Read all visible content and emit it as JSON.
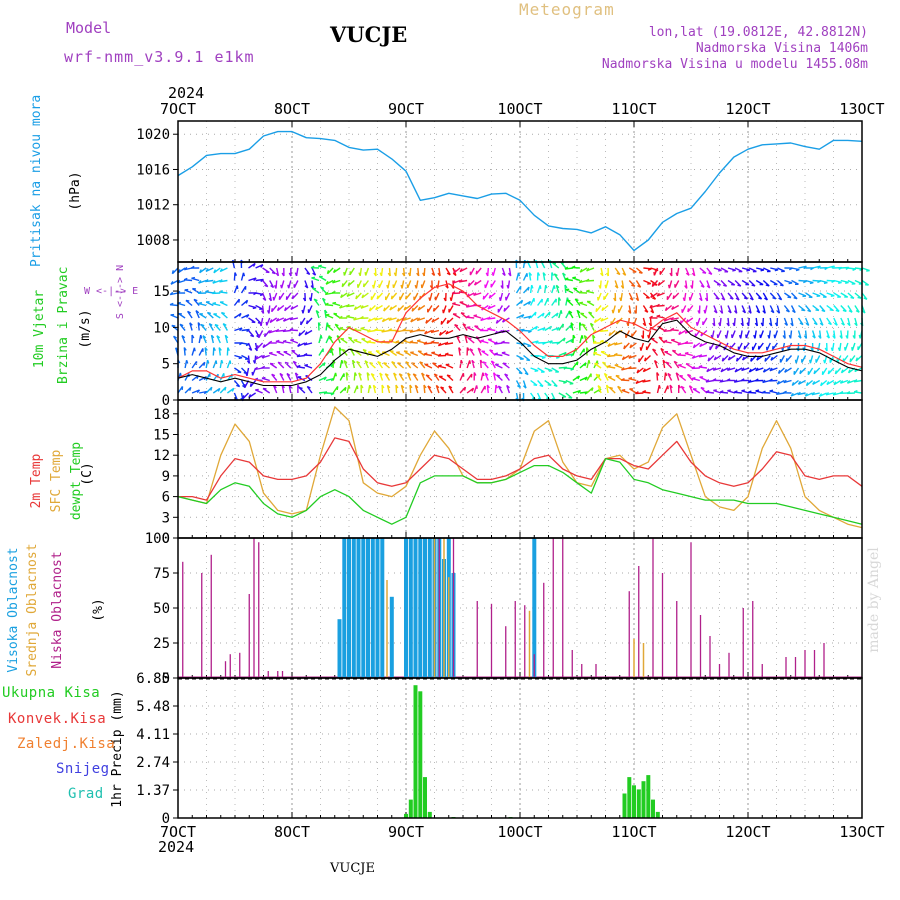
{
  "header": {
    "model_label": "Model",
    "model_name": "wrf-nmm_v3.9.1  e1km",
    "station": "VUCJE",
    "meteogram": "Meteogram",
    "lonlat": "lon,lat (19.0812E, 42.8812N)",
    "elev": "Nadmorska Visina 1406m",
    "elev_model": "Nadmorska Visina u modelu 1455.08m"
  },
  "colors": {
    "pressure": "#1a9ee6",
    "wind_speed": "#000000",
    "wind_gust": "#ff3333",
    "temp_2m": "#e83838",
    "temp_sfc": "#e0a838",
    "dewpoint": "#22cc22",
    "cloud_high": "#1aa0e0",
    "cloud_mid": "#e0a838",
    "cloud_low": "#b0208a",
    "precip_total": "#22cc22",
    "grid": "#888888",
    "model": "#a040c0",
    "meteogram": "#e0c080"
  },
  "time_axis": {
    "year_top": "2024",
    "year_bottom": "2024",
    "ticks": [
      "7OCT",
      "8OCT",
      "9OCT",
      "10OCT",
      "11OCT",
      "12OCT",
      "13OCT"
    ],
    "footer": "VUCJE"
  },
  "credit": "made by Angel",
  "chart_data": [
    {
      "type": "line",
      "name": "pressure",
      "label": "Pritisak na nivou mora",
      "ylabel": "(hPa)",
      "ylim": [
        1005.5,
        1021.5
      ],
      "yticks": [
        1008,
        1012,
        1016,
        1020
      ],
      "x": [
        0,
        3,
        6,
        9,
        12,
        15,
        18,
        21,
        24,
        27,
        30,
        33,
        36,
        39,
        42,
        45,
        48,
        51,
        54,
        57,
        60,
        63,
        66,
        69,
        72,
        75,
        78,
        81,
        84,
        87,
        90,
        93,
        96,
        99,
        102,
        105,
        108,
        111,
        114,
        117,
        120,
        123,
        126,
        129,
        132,
        135,
        138,
        141,
        144
      ],
      "values": [
        1015.3,
        1016.3,
        1017.6,
        1017.8,
        1017.8,
        1018.3,
        1019.8,
        1020.3,
        1020.3,
        1019.6,
        1019.5,
        1019.3,
        1018.5,
        1018.2,
        1018.3,
        1017.2,
        1015.8,
        1012.5,
        1012.8,
        1013.3,
        1013.0,
        1012.7,
        1013.2,
        1013.3,
        1012.5,
        1010.8,
        1009.6,
        1009.3,
        1009.2,
        1008.8,
        1009.5,
        1008.6,
        1006.8,
        1008.0,
        1010.0,
        1011.0,
        1011.6,
        1013.5,
        1015.6,
        1017.4,
        1018.3,
        1018.8,
        1018.9,
        1019.0,
        1018.6,
        1018.3,
        1019.3,
        1019.3,
        1019.2
      ]
    },
    {
      "type": "line",
      "name": "wind",
      "label": "10m Vjetar",
      "label2": "Brzina i Pravac",
      "ylabel": "(m/s)",
      "ylim": [
        0,
        19
      ],
      "yticks": [
        0,
        5,
        10,
        15
      ],
      "compass": "W <-|-> E",
      "compass_ns": "S <-|-> N",
      "x": [
        0,
        3,
        6,
        9,
        12,
        15,
        18,
        21,
        24,
        27,
        30,
        33,
        36,
        39,
        42,
        45,
        48,
        51,
        54,
        57,
        60,
        63,
        66,
        69,
        72,
        75,
        78,
        81,
        84,
        87,
        90,
        93,
        96,
        99,
        102,
        105,
        108,
        111,
        114,
        117,
        120,
        123,
        126,
        129,
        132,
        135,
        138,
        141,
        144
      ],
      "series": [
        {
          "name": "speed",
          "values": [
            3,
            3.5,
            3,
            2.5,
            3,
            2.5,
            2,
            2,
            2,
            2.5,
            3.5,
            5.5,
            7,
            6.5,
            6,
            7,
            8.5,
            9,
            8.5,
            8.5,
            9,
            8.5,
            9,
            9.5,
            8,
            6,
            5,
            5,
            5.5,
            7,
            8,
            9.5,
            8.5,
            8,
            10.5,
            11,
            9,
            8,
            7.5,
            6.5,
            6,
            6,
            6.5,
            7,
            7,
            6.5,
            5.5,
            4.5,
            4
          ]
        },
        {
          "name": "gust",
          "values": [
            3,
            4,
            4,
            3,
            3.5,
            3,
            2.5,
            2.5,
            2.5,
            3,
            5,
            8,
            10,
            9,
            8,
            8,
            12,
            14,
            15.5,
            16,
            15,
            13,
            12,
            11,
            9.5,
            7.5,
            6,
            6,
            7,
            9,
            10,
            11,
            10.5,
            9.5,
            11,
            12,
            10,
            9,
            8,
            7,
            6.5,
            6.5,
            7,
            7.5,
            7.5,
            7,
            6,
            5,
            4.5
          ]
        }
      ]
    },
    {
      "type": "line",
      "name": "temperature",
      "label": "2m Temp",
      "label2": "SFC Temp",
      "label3": "dewpt Temp",
      "ylabel": "(C)",
      "ylim": [
        0,
        20
      ],
      "yticks": [
        0,
        3,
        6,
        9,
        12,
        15,
        18
      ],
      "x": [
        0,
        3,
        6,
        9,
        12,
        15,
        18,
        21,
        24,
        27,
        30,
        33,
        36,
        39,
        42,
        45,
        48,
        51,
        54,
        57,
        60,
        63,
        66,
        69,
        72,
        75,
        78,
        81,
        84,
        87,
        90,
        93,
        96,
        99,
        102,
        105,
        108,
        111,
        114,
        117,
        120,
        123,
        126,
        129,
        132,
        135,
        138,
        141,
        144
      ],
      "series": [
        {
          "name": "2m",
          "values": [
            6,
            6,
            5.5,
            9,
            11.5,
            11,
            9,
            8.5,
            8.5,
            9,
            11,
            14.5,
            14,
            10,
            8,
            7.5,
            8,
            10,
            12,
            11.5,
            10,
            8.5,
            8.5,
            9,
            10,
            11.5,
            12,
            10,
            9,
            8.5,
            11.5,
            11.5,
            10.5,
            10,
            12,
            14,
            11,
            9,
            8,
            7.5,
            8,
            10,
            12.5,
            12,
            9,
            8.5,
            9,
            9,
            7.5
          ]
        },
        {
          "name": "sfc",
          "values": [
            6,
            5.5,
            5,
            12,
            16.5,
            14,
            6.5,
            4,
            3.5,
            4,
            12,
            19,
            17,
            8,
            6.5,
            6,
            7.5,
            12,
            15.5,
            13,
            9,
            8,
            8,
            8.5,
            10,
            15.5,
            17,
            11,
            8,
            7.5,
            11.5,
            12,
            10,
            11,
            16,
            18,
            12,
            6,
            4.5,
            4,
            6,
            13,
            17,
            13,
            6,
            4,
            3,
            2,
            1.5
          ]
        },
        {
          "name": "dewpoint",
          "values": [
            6,
            5.5,
            5,
            7,
            8,
            7.5,
            5,
            3.5,
            3,
            4,
            6,
            7,
            6,
            4,
            3,
            2,
            3,
            8,
            9,
            9,
            9,
            8,
            8,
            8.5,
            9.5,
            10.5,
            10.5,
            9.5,
            8,
            6.5,
            11.5,
            11,
            8.5,
            8,
            7,
            6.5,
            6,
            5.5,
            5.5,
            5.5,
            5,
            5,
            5,
            4.5,
            4,
            3.5,
            3,
            2.5,
            2
          ]
        }
      ]
    },
    {
      "type": "bar",
      "name": "cloud",
      "label": "Visoka Oblacnost",
      "label2": "Srednja Oblacnost",
      "label3": "Niska Oblacnost",
      "ylabel": "(%)",
      "ylim": [
        0,
        100
      ],
      "yticks": [
        0,
        25,
        50,
        75,
        100
      ],
      "series": [
        {
          "name": "low",
          "x": [
            1,
            5,
            7,
            10,
            11,
            13,
            15,
            16,
            17,
            19,
            21,
            22,
            55,
            58,
            63,
            66,
            69,
            71,
            73,
            75,
            77,
            79,
            81,
            83,
            85,
            88,
            95,
            97,
            100,
            102,
            105,
            108,
            110,
            112,
            114,
            116,
            119,
            121,
            123,
            128,
            130,
            132,
            134,
            136
          ],
          "values": [
            83,
            75,
            88,
            12,
            17,
            18,
            60,
            100,
            97,
            5,
            5,
            5,
            100,
            100,
            55,
            53,
            37,
            55,
            52,
            17,
            68,
            100,
            100,
            20,
            10,
            10,
            62,
            80,
            100,
            75,
            55,
            97,
            45,
            30,
            10,
            18,
            50,
            55,
            10,
            15,
            15,
            20,
            20,
            25
          ]
        },
        {
          "name": "high",
          "x": [
            34,
            35,
            36,
            37,
            38,
            39,
            40,
            41,
            42,
            43,
            45,
            48,
            49,
            50,
            51,
            52,
            53,
            54,
            55,
            56,
            57,
            58,
            75
          ],
          "values": [
            42,
            100,
            100,
            100,
            100,
            100,
            100,
            100,
            100,
            100,
            58,
            100,
            100,
            100,
            100,
            100,
            100,
            100,
            100,
            85,
            100,
            75,
            100
          ]
        },
        {
          "name": "mid",
          "x": [
            44,
            54,
            56,
            57,
            74,
            96,
            98
          ],
          "values": [
            70,
            100,
            100,
            72,
            48,
            28,
            25
          ]
        }
      ]
    },
    {
      "type": "bar",
      "name": "precip",
      "label": "Ukupna  Kisa",
      "label2": "Konvek.Kisa",
      "label3": "Zaledj.Kisa",
      "label4": "Snijeg",
      "label5": "Grad",
      "ylabel": "1hr Precip (mm)",
      "ylim": [
        0,
        6.85
      ],
      "yticks": [
        "0",
        "1.37",
        "2.74",
        "4.11",
        "5.48",
        "6.85"
      ],
      "yvalues": [
        0,
        1.37,
        2.74,
        4.11,
        5.48,
        6.85
      ],
      "series": [
        {
          "name": "total",
          "x": [
            48,
            49,
            50,
            51,
            52,
            53,
            58,
            70,
            94,
            95,
            96,
            97,
            98,
            99,
            100,
            101
          ],
          "values": [
            0.2,
            0.9,
            6.5,
            6.2,
            2.0,
            0.3,
            0.05,
            0.05,
            1.2,
            2.0,
            1.6,
            1.4,
            1.8,
            2.1,
            0.9,
            0.3
          ]
        }
      ]
    }
  ]
}
